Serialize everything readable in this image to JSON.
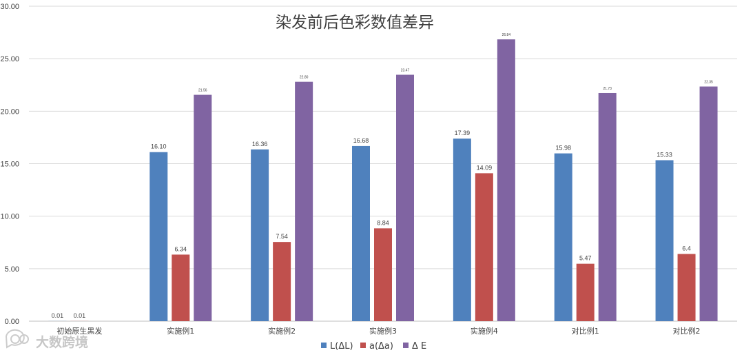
{
  "chart_data": {
    "type": "bar",
    "title": "染发前后色彩数值差异",
    "categories": [
      "初始原生黑发",
      "实施例1",
      "实施例2",
      "实施例3",
      "实施例4",
      "对比例1",
      "对比例2"
    ],
    "series": [
      {
        "name": "L(ΔL)",
        "color": "#4f81bd",
        "values": [
          0.01,
          16.1,
          16.36,
          16.68,
          17.39,
          15.98,
          15.33
        ],
        "labels": [
          "0.01",
          "16.10",
          "16.36",
          "16.68",
          "17.39",
          "15.98",
          "15.33"
        ]
      },
      {
        "name": "a(Δa)",
        "color": "#c0504d",
        "values": [
          0.01,
          6.34,
          7.54,
          8.84,
          14.09,
          5.47,
          6.4
        ],
        "labels": [
          "0.01",
          "6.34",
          "7.54",
          "8.84",
          "14.09",
          "5.47",
          "6.4"
        ]
      },
      {
        "name": "Δ E",
        "color": "#8064a2",
        "values": [
          null,
          21.56,
          22.8,
          23.47,
          26.84,
          21.73,
          22.35
        ],
        "labels": [
          "",
          "21.56",
          "22.80",
          "23.47",
          "26.84",
          "21.73",
          "22.35"
        ]
      }
    ],
    "ylim": [
      0,
      30
    ],
    "yticks": [
      "0.00",
      "5.00",
      "10.00",
      "15.00",
      "20.00",
      "25.00",
      "30.00"
    ],
    "legend": "bottom",
    "grid": true
  },
  "watermark": {
    "text": "大数跨境",
    "icon": "speech-bubble-icon"
  }
}
